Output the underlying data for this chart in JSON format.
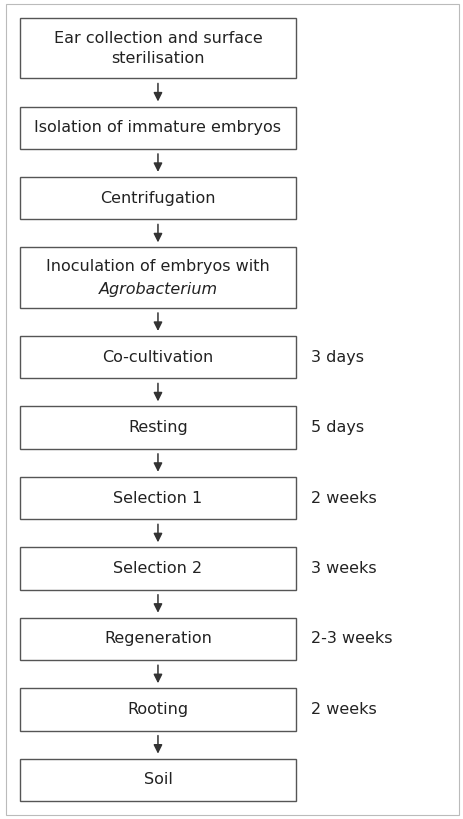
{
  "steps": [
    {
      "label": "Ear collection and surface\nsterilisation",
      "has_italic_second_line": false,
      "duration": null
    },
    {
      "label": "Isolation of immature embryos",
      "has_italic_second_line": false,
      "duration": null
    },
    {
      "label": "Centrifugation",
      "has_italic_second_line": false,
      "duration": null
    },
    {
      "label": "Inoculation of embryos with\nAgrobacterium",
      "has_italic_second_line": true,
      "duration": null
    },
    {
      "label": "Co-cultivation",
      "has_italic_second_line": false,
      "duration": "3 days"
    },
    {
      "label": "Resting",
      "has_italic_second_line": false,
      "duration": "5 days"
    },
    {
      "label": "Selection 1",
      "has_italic_second_line": false,
      "duration": "2 weeks"
    },
    {
      "label": "Selection 2",
      "has_italic_second_line": false,
      "duration": "3 weeks"
    },
    {
      "label": "Regeneration",
      "has_italic_second_line": false,
      "duration": "2-3 weeks"
    },
    {
      "label": "Rooting",
      "has_italic_second_line": false,
      "duration": "2 weeks"
    },
    {
      "label": "Soil",
      "has_italic_second_line": false,
      "duration": null
    }
  ],
  "box_color": "#ffffff",
  "box_edge_color": "#555555",
  "text_color": "#222222",
  "arrow_color": "#333333",
  "duration_color": "#222222",
  "background_color": "#ffffff",
  "fontsize": 11.5,
  "duration_fontsize": 11.5,
  "figwidth": 4.63,
  "figheight": 8.19,
  "dpi": 100
}
